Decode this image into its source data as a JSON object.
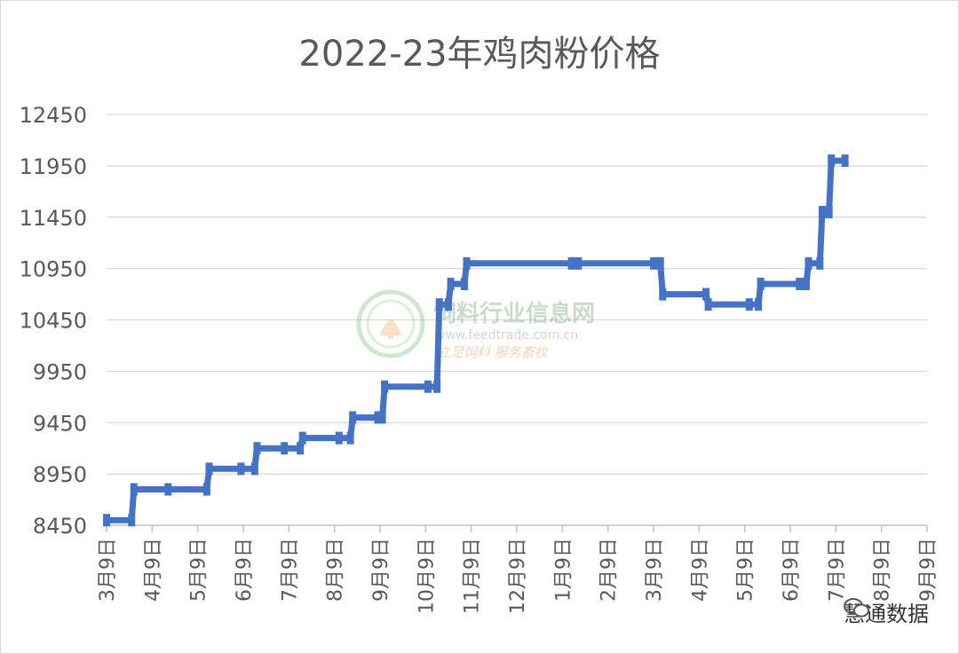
{
  "chart_data": {
    "type": "line",
    "title": "2022-23年鸡肉粉价格",
    "xlabel": "",
    "ylabel": "",
    "ylim": [
      8450,
      12450
    ],
    "yticks": [
      "12450",
      "11950",
      "11450",
      "10950",
      "10450",
      "9950",
      "9450",
      "8950",
      "8450"
    ],
    "xticks": [
      "3月9日",
      "4月9日",
      "5月9日",
      "6月9日",
      "7月9日",
      "8月9日",
      "9月9日",
      "10月9日",
      "11月9日",
      "12月9日",
      "1月9日",
      "2月9日",
      "3月9日",
      "4月9日",
      "5月9日",
      "6月9日",
      "7月9日",
      "8月9日",
      "9月9日"
    ],
    "grid": true,
    "line_color": "#4472C4",
    "series": [
      {
        "x": [
          0,
          0.55,
          0.6,
          1.35,
          2.2,
          2.25,
          2.95,
          3.25,
          3.3,
          3.9,
          4.25,
          4.3,
          5.1,
          5.35,
          5.4,
          5.95,
          6.05,
          6.1,
          7.05,
          7.25,
          7.3,
          7.5,
          7.55,
          7.85,
          7.9,
          10.2,
          10.35,
          12.0,
          12.15,
          12.2,
          13.15,
          13.2,
          14.1,
          14.3,
          14.35,
          15.2,
          15.35,
          15.4,
          15.65,
          15.7,
          15.85,
          15.9,
          16.2
        ],
        "values": [
          8500,
          8500,
          8800,
          8800,
          8800,
          9000,
          9000,
          9000,
          9200,
          9200,
          9200,
          9300,
          9300,
          9300,
          9500,
          9500,
          9500,
          9800,
          9800,
          9800,
          10600,
          10600,
          10800,
          10800,
          11000,
          11000,
          11000,
          11000,
          11000,
          10700,
          10700,
          10600,
          10600,
          10600,
          10800,
          10800,
          10800,
          11000,
          11000,
          11500,
          11500,
          12000,
          12000
        ]
      }
    ]
  },
  "watermark": {
    "name": "饲料行业信息网",
    "url": "www.feedtrade.com.cn",
    "slogan": "立足饲料  服务畜牧"
  },
  "brand": {
    "label": "慧通数据",
    "icon": "wechat-icon"
  }
}
